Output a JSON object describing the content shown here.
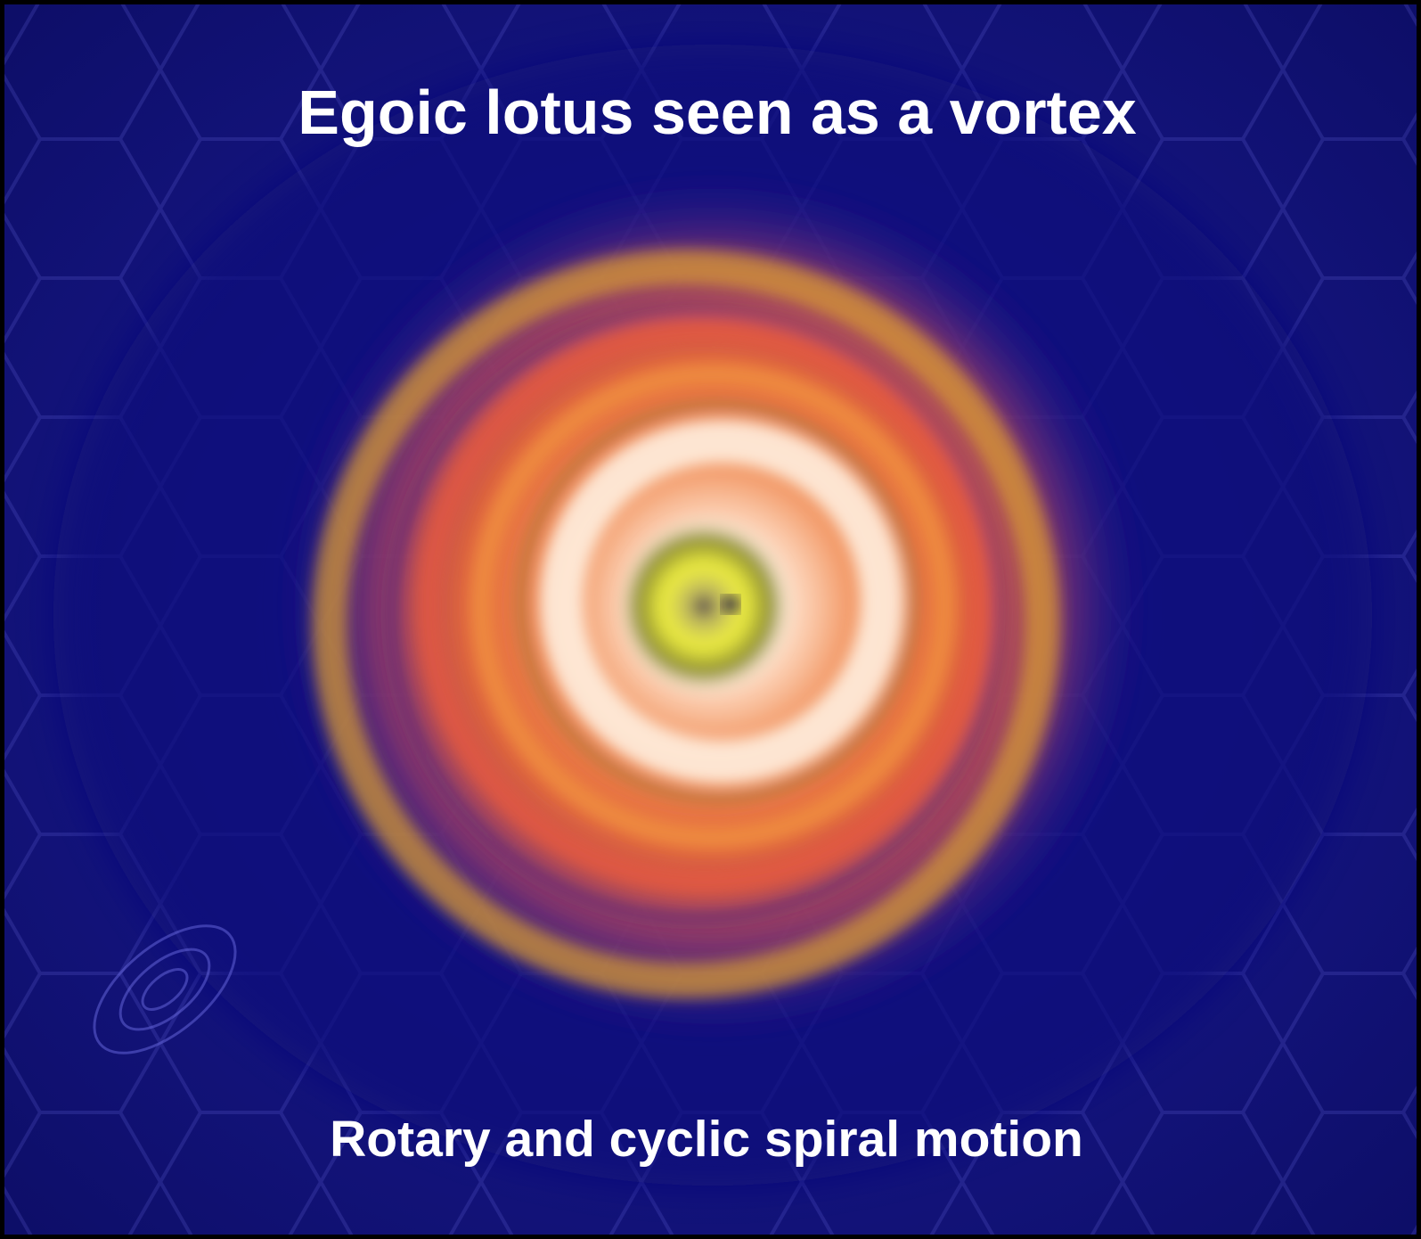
{
  "title": "Egoic lotus seen as a vortex",
  "caption": "Rotary and cyclic spiral motion"
}
